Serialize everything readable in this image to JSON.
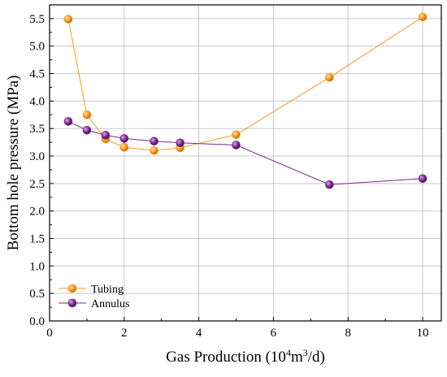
{
  "chart_data": {
    "type": "line",
    "title": "",
    "xlabel": "Gas Production (10^4m^3/d)",
    "xlabel_parts": {
      "prefix": "Gas Production (10",
      "sup1": "4",
      "mid": "m",
      "sup2": "3",
      "suffix": "/d)"
    },
    "ylabel": "Bottom hole pressure (MPa)",
    "xlim": [
      0,
      10.5
    ],
    "ylim": [
      0,
      5.75
    ],
    "xticks": [
      0,
      2,
      4,
      6,
      8,
      10
    ],
    "xtick_labels": [
      "0",
      "2",
      "4",
      "6",
      "8",
      "10"
    ],
    "yticks": [
      0,
      0.5,
      1,
      1.5,
      2,
      2.5,
      3,
      3.5,
      4,
      4.5,
      5,
      5.5
    ],
    "ytick_labels": [
      "0.0",
      "0.5",
      "1.0",
      "1.5",
      "2.0",
      "2.5",
      "3.0",
      "3.5",
      "4.0",
      "4.5",
      "5.0",
      "5.5"
    ],
    "grid": true,
    "legend_position": "bottom-left",
    "series": [
      {
        "name": "Tubing",
        "color": "#F59A1E",
        "x": [
          0.5,
          1,
          1.5,
          2,
          2.8,
          3.5,
          5,
          7.5,
          10
        ],
        "y": [
          5.49,
          3.75,
          3.31,
          3.16,
          3.1,
          3.15,
          3.39,
          4.43,
          5.53
        ]
      },
      {
        "name": "Annulus",
        "color": "#7B2A8A",
        "x": [
          0.5,
          1,
          1.5,
          2,
          2.8,
          3.5,
          5,
          7.5,
          10
        ],
        "y": [
          3.63,
          3.47,
          3.38,
          3.32,
          3.27,
          3.24,
          3.2,
          2.48,
          2.59
        ]
      }
    ]
  }
}
